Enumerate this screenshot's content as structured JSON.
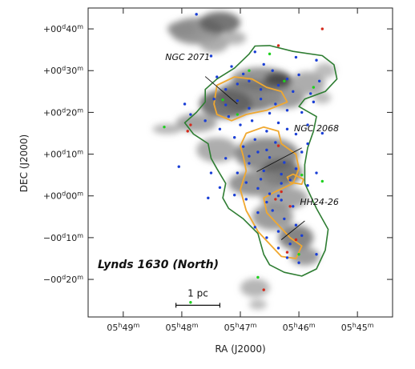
{
  "chart_data": {
    "type": "scatter",
    "title": "Lynds 1630 (North)",
    "xlabel": "RA (J2000)",
    "ylabel": "DEC (J2000)",
    "x_unit": "RA minutes (05h)",
    "y_unit": "DEC arcminutes",
    "xlim": [
      49.6,
      44.4
    ],
    "ylim": [
      -29,
      45
    ],
    "x_ticks": [
      {
        "value": 49,
        "h": "05",
        "hs": "h",
        "m": "49",
        "ms": "m"
      },
      {
        "value": 48,
        "h": "05",
        "hs": "h",
        "m": "48",
        "ms": "m"
      },
      {
        "value": 47,
        "h": "05",
        "hs": "h",
        "m": "47",
        "ms": "m"
      },
      {
        "value": 46,
        "h": "05",
        "hs": "h",
        "m": "46",
        "ms": "m"
      },
      {
        "value": 45,
        "h": "05",
        "hs": "h",
        "m": "45",
        "ms": "m"
      }
    ],
    "y_ticks": [
      {
        "value": 40,
        "d": "+00",
        "ds": "d",
        "m": "40",
        "ms": "m"
      },
      {
        "value": 30,
        "d": "+00",
        "ds": "d",
        "m": "30",
        "ms": "m"
      },
      {
        "value": 20,
        "d": "+00",
        "ds": "d",
        "m": "20",
        "ms": "m"
      },
      {
        "value": 10,
        "d": "+00",
        "ds": "d",
        "m": "10",
        "ms": "m"
      },
      {
        "value": 0,
        "d": "+00",
        "ds": "d",
        "m": "00",
        "ms": "m"
      },
      {
        "value": -10,
        "d": "−00",
        "ds": "d",
        "m": "10",
        "ms": "m"
      },
      {
        "value": -20,
        "d": "−00",
        "ds": "d",
        "m": "20",
        "ms": "m"
      }
    ],
    "annotations": [
      {
        "text": "NGC 2071",
        "label": [
          47.9,
          32.5
        ],
        "line_from": [
          47.6,
          28.6
        ],
        "line_to": [
          47.05,
          22.0
        ]
      },
      {
        "text": "NGC 2068",
        "label": [
          45.7,
          15.5
        ],
        "line_from": [
          45.95,
          11.5
        ],
        "line_to": [
          46.72,
          5.8
        ]
      },
      {
        "text": "HH24-26",
        "label": [
          45.65,
          -2.2
        ],
        "line_from": [
          45.9,
          -6.0
        ],
        "line_to": [
          46.3,
          -10.5
        ]
      }
    ],
    "scale_bar": {
      "label": "1 pc",
      "x_start": 48.1,
      "x_end": 47.35,
      "y": -26.2
    },
    "green_contour": [
      [
        46.5,
        36.0
      ],
      [
        46.1,
        34.6
      ],
      [
        45.6,
        33.6
      ],
      [
        45.4,
        31.4
      ],
      [
        45.35,
        28.0
      ],
      [
        45.55,
        25.0
      ],
      [
        45.9,
        23.2
      ],
      [
        46.0,
        21.4
      ],
      [
        45.7,
        19.0
      ],
      [
        45.75,
        15.5
      ],
      [
        45.85,
        11.5
      ],
      [
        45.9,
        7.5
      ],
      [
        45.9,
        3.0
      ],
      [
        45.7,
        -3.0
      ],
      [
        45.5,
        -8.0
      ],
      [
        45.55,
        -13.0
      ],
      [
        45.7,
        -17.5
      ],
      [
        45.95,
        -19.2
      ],
      [
        46.25,
        -18.3
      ],
      [
        46.5,
        -16.5
      ],
      [
        46.6,
        -14.0
      ],
      [
        46.7,
        -9.0
      ],
      [
        46.95,
        -5.5
      ],
      [
        47.2,
        -3.0
      ],
      [
        47.3,
        -0.5
      ],
      [
        47.25,
        3.0
      ],
      [
        47.4,
        6.5
      ],
      [
        47.5,
        9.0
      ],
      [
        47.55,
        12.5
      ],
      [
        47.8,
        14.8
      ],
      [
        47.95,
        17.5
      ],
      [
        47.75,
        20.0
      ],
      [
        47.6,
        22.5
      ],
      [
        47.6,
        25.5
      ],
      [
        47.4,
        28.0
      ],
      [
        47.1,
        30.6
      ],
      [
        46.85,
        34.0
      ],
      [
        46.75,
        35.9
      ]
    ],
    "orange_contours": [
      [
        [
          47.45,
          22.0
        ],
        [
          47.4,
          26.5
        ],
        [
          47.1,
          28.5
        ],
        [
          46.8,
          28.0
        ],
        [
          46.55,
          26.0
        ],
        [
          46.3,
          25.0
        ],
        [
          46.2,
          22.5
        ],
        [
          46.55,
          20.5
        ],
        [
          46.9,
          19.5
        ],
        [
          47.15,
          18.0
        ],
        [
          47.4,
          19.5
        ]
      ],
      [
        [
          47.0,
          12.0
        ],
        [
          46.9,
          15.0
        ],
        [
          46.6,
          16.5
        ],
        [
          46.35,
          15.5
        ],
        [
          46.3,
          12.5
        ],
        [
          46.05,
          10.0
        ],
        [
          46.0,
          6.5
        ],
        [
          46.1,
          3.0
        ],
        [
          46.4,
          1.0
        ],
        [
          46.6,
          -0.5
        ],
        [
          46.55,
          -4.0
        ],
        [
          46.35,
          -7.0
        ],
        [
          46.15,
          -10.0
        ],
        [
          45.95,
          -12.0
        ],
        [
          46.05,
          -15.0
        ],
        [
          46.3,
          -14.5
        ],
        [
          46.5,
          -11.5
        ],
        [
          46.7,
          -8.5
        ],
        [
          46.9,
          -3.5
        ],
        [
          47.0,
          1.5
        ],
        [
          46.9,
          6.0
        ],
        [
          46.95,
          9.5
        ]
      ],
      [
        [
          46.1,
          5.2
        ],
        [
          45.92,
          4.0
        ],
        [
          45.95,
          2.8
        ],
        [
          46.15,
          3.2
        ],
        [
          46.2,
          4.5
        ]
      ]
    ],
    "gray_clouds": [
      {
        "x": 47.75,
        "y": 39.5,
        "rx": 0.45,
        "ry": 3.2,
        "shade": 0.55
      },
      {
        "x": 47.35,
        "y": 41.5,
        "rx": 0.35,
        "ry": 2.6,
        "shade": 0.75
      },
      {
        "x": 48.0,
        "y": 40.0,
        "rx": 0.25,
        "ry": 1.8,
        "shade": 0.5
      },
      {
        "x": 47.45,
        "y": 36.5,
        "rx": 0.25,
        "ry": 2.2,
        "shade": 0.4
      },
      {
        "x": 47.1,
        "y": 37.8,
        "rx": 0.2,
        "ry": 1.6,
        "shade": 0.35
      },
      {
        "x": 46.65,
        "y": 28.0,
        "rx": 0.5,
        "ry": 2.8,
        "shade": 0.55
      },
      {
        "x": 46.35,
        "y": 27.5,
        "rx": 0.25,
        "ry": 2.2,
        "shade": 0.9
      },
      {
        "x": 46.85,
        "y": 24.0,
        "rx": 0.55,
        "ry": 3.8,
        "shade": 0.65
      },
      {
        "x": 47.25,
        "y": 22.0,
        "rx": 0.45,
        "ry": 3.5,
        "shade": 0.75
      },
      {
        "x": 46.25,
        "y": 23.5,
        "rx": 0.35,
        "ry": 2.6,
        "shade": 0.5
      },
      {
        "x": 45.85,
        "y": 27.0,
        "rx": 0.3,
        "ry": 2.8,
        "shade": 0.4
      },
      {
        "x": 45.55,
        "y": 30.0,
        "rx": 0.18,
        "ry": 1.8,
        "shade": 0.3
      },
      {
        "x": 47.75,
        "y": 17.5,
        "rx": 0.35,
        "ry": 2.2,
        "shade": 0.45
      },
      {
        "x": 48.25,
        "y": 16.0,
        "rx": 0.25,
        "ry": 1.2,
        "shade": 0.35
      },
      {
        "x": 47.4,
        "y": 11.0,
        "rx": 0.35,
        "ry": 3.0,
        "shade": 0.4
      },
      {
        "x": 46.55,
        "y": 10.0,
        "rx": 0.55,
        "ry": 4.0,
        "shade": 0.6
      },
      {
        "x": 46.3,
        "y": 5.5,
        "rx": 0.35,
        "ry": 3.2,
        "shade": 0.75
      },
      {
        "x": 46.75,
        "y": 3.0,
        "rx": 0.45,
        "ry": 3.0,
        "shade": 0.55
      },
      {
        "x": 46.25,
        "y": -0.5,
        "rx": 0.4,
        "ry": 2.8,
        "shade": 0.45
      },
      {
        "x": 46.45,
        "y": -5.0,
        "rx": 0.35,
        "ry": 3.2,
        "shade": 0.5
      },
      {
        "x": 46.05,
        "y": -10.0,
        "rx": 0.3,
        "ry": 3.0,
        "shade": 0.65
      },
      {
        "x": 45.9,
        "y": -14.5,
        "rx": 0.25,
        "ry": 2.2,
        "shade": 0.5
      },
      {
        "x": 46.75,
        "y": -22.0,
        "rx": 0.25,
        "ry": 2.2,
        "shade": 0.35
      },
      {
        "x": 46.7,
        "y": -26.0,
        "rx": 0.15,
        "ry": 1.2,
        "shade": 0.3
      },
      {
        "x": 45.6,
        "y": 23.5,
        "rx": 0.15,
        "ry": 1.4,
        "shade": 0.3
      }
    ],
    "series": [
      {
        "color": "#1a3fd6",
        "points": [
          [
            46.95,
            29.2
          ],
          [
            46.6,
            31.5
          ],
          [
            46.45,
            30.0
          ],
          [
            46.2,
            28.0
          ],
          [
            46.0,
            29.0
          ],
          [
            46.35,
            26.5
          ],
          [
            46.1,
            25.0
          ],
          [
            45.8,
            24.5
          ],
          [
            47.05,
            26.8
          ],
          [
            47.25,
            25.5
          ],
          [
            47.45,
            23.2
          ],
          [
            47.25,
            21.8
          ],
          [
            47.05,
            22.8
          ],
          [
            46.85,
            21.0
          ],
          [
            46.65,
            23.2
          ],
          [
            46.5,
            19.8
          ],
          [
            46.35,
            17.5
          ],
          [
            46.2,
            16.0
          ],
          [
            46.05,
            14.8
          ],
          [
            46.55,
            15.5
          ],
          [
            46.75,
            13.5
          ],
          [
            46.95,
            11.8
          ],
          [
            46.7,
            10.5
          ],
          [
            46.5,
            9.2
          ],
          [
            46.25,
            8.0
          ],
          [
            46.05,
            6.5
          ],
          [
            46.3,
            5.2
          ],
          [
            46.6,
            6.0
          ],
          [
            46.85,
            7.8
          ],
          [
            47.05,
            5.5
          ],
          [
            46.9,
            3.2
          ],
          [
            46.7,
            1.8
          ],
          [
            46.5,
            0.5
          ],
          [
            46.3,
            -1.0
          ],
          [
            46.1,
            -2.5
          ],
          [
            46.45,
            -3.5
          ],
          [
            46.25,
            -5.5
          ],
          [
            46.05,
            -7.0
          ],
          [
            45.95,
            -9.5
          ],
          [
            46.15,
            -11.5
          ],
          [
            46.35,
            -12.5
          ],
          [
            46.55,
            -10.0
          ],
          [
            46.75,
            -7.5
          ],
          [
            46.9,
            -0.8
          ],
          [
            47.1,
            0.2
          ],
          [
            47.35,
            2.0
          ],
          [
            47.55,
            -0.5
          ],
          [
            47.5,
            5.5
          ],
          [
            47.25,
            9.0
          ],
          [
            47.1,
            14.0
          ],
          [
            47.35,
            16.0
          ],
          [
            47.6,
            18.0
          ],
          [
            47.85,
            19.5
          ],
          [
            47.95,
            22.0
          ],
          [
            47.4,
            28.5
          ],
          [
            47.15,
            31.0
          ],
          [
            46.75,
            34.5
          ],
          [
            46.05,
            33.2
          ],
          [
            45.7,
            32.5
          ],
          [
            45.65,
            27.5
          ],
          [
            45.75,
            22.5
          ],
          [
            45.95,
            20.0
          ],
          [
            45.85,
            17.0
          ],
          [
            45.6,
            15.0
          ],
          [
            45.85,
            12.5
          ],
          [
            45.95,
            10.5
          ],
          [
            45.7,
            5.5
          ],
          [
            45.85,
            2.5
          ],
          [
            46.55,
            -1.5
          ],
          [
            46.7,
            -4.0
          ],
          [
            46.35,
            -8.5
          ],
          [
            46.2,
            -14.8
          ],
          [
            46.0,
            -16.0
          ],
          [
            45.7,
            -14.0
          ],
          [
            46.3,
            3.0
          ],
          [
            46.55,
            11.0
          ],
          [
            46.8,
            18.0
          ],
          [
            47.0,
            17.0
          ],
          [
            46.4,
            22.0
          ],
          [
            46.2,
            20.5
          ],
          [
            46.65,
            25.5
          ],
          [
            46.85,
            27.5
          ],
          [
            46.4,
            12.8
          ],
          [
            46.85,
            9.5
          ],
          [
            46.65,
            4.0
          ],
          [
            47.2,
            19.0
          ],
          [
            46.15,
            3.8
          ],
          [
            46.35,
            0.0
          ],
          [
            47.75,
            43.5
          ],
          [
            47.5,
            33.5
          ],
          [
            48.05,
            7.0
          ]
        ]
      },
      {
        "color": "#d42a1c",
        "points": [
          [
            46.35,
            36.0
          ],
          [
            45.6,
            40.0
          ],
          [
            47.85,
            17.0
          ],
          [
            46.35,
            12.0
          ],
          [
            46.3,
            1.0
          ],
          [
            46.4,
            -0.8
          ],
          [
            46.15,
            -2.5
          ],
          [
            46.05,
            -10.5
          ],
          [
            46.2,
            -13.5
          ],
          [
            46.6,
            -22.5
          ],
          [
            47.9,
            15.5
          ]
        ]
      },
      {
        "color": "#1fd11f",
        "points": [
          [
            47.3,
            23.0
          ],
          [
            47.05,
            19.5
          ],
          [
            46.85,
            30.0
          ],
          [
            46.25,
            27.5
          ],
          [
            45.75,
            26.0
          ],
          [
            45.95,
            5.0
          ],
          [
            45.6,
            3.5
          ],
          [
            46.0,
            -14.0
          ],
          [
            46.7,
            -19.5
          ],
          [
            47.85,
            -25.5
          ],
          [
            46.5,
            34.0
          ],
          [
            48.3,
            16.5
          ]
        ]
      }
    ]
  }
}
